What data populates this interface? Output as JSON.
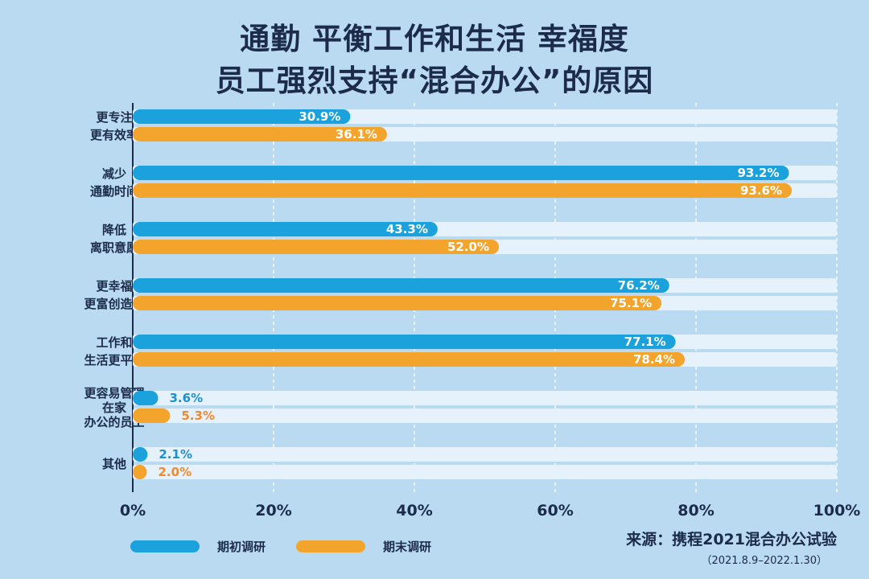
{
  "title": [
    "通勤 平衡工作和生活 幸福度",
    "员工强烈支持“混合办公”的原因"
  ],
  "chart_data": {
    "type": "bar",
    "orientation": "horizontal",
    "categories": [
      [
        "更专注",
        "更有效率"
      ],
      [
        "减少",
        "通勤时间"
      ],
      [
        "降低",
        "离职意愿"
      ],
      [
        "更幸福",
        "更富创造力"
      ],
      [
        "工作和",
        "生活更平衡"
      ],
      [
        "更容易管理",
        "在家",
        "办公的员工"
      ],
      [
        "其他"
      ]
    ],
    "series": [
      {
        "name": "期初调研",
        "color": "#1ba1dc",
        "values": [
          30.9,
          93.2,
          43.3,
          76.2,
          77.1,
          3.6,
          2.1
        ]
      },
      {
        "name": "期末调研",
        "color": "#f3a42d",
        "values": [
          36.1,
          93.6,
          52.0,
          75.1,
          78.4,
          5.3,
          2.0
        ]
      }
    ],
    "xlim": [
      0,
      100
    ],
    "xticks": [
      "0%",
      "20%",
      "40%",
      "60%",
      "80%",
      "100%"
    ],
    "grid": true,
    "legend_position": "bottom-left",
    "track_color": "#e6f2fb",
    "label_outside_color": [
      "#1b8fd0",
      "#f08a2c"
    ]
  },
  "source": "来源：携程2021混合办公试验",
  "source_date": "（2021.8.9–2022.1.30）"
}
